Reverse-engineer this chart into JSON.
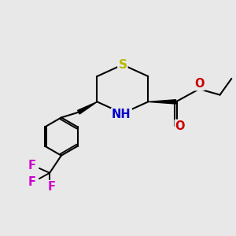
{
  "background_color": "#e8e8e8",
  "S_color": "#b8b800",
  "N_color": "#0000cc",
  "O_color": "#cc0000",
  "F_color": "#cc00cc",
  "bond_color": "#000000",
  "lw": 1.5,
  "figsize": [
    3.0,
    3.0
  ],
  "dpi": 100,
  "xlim": [
    0,
    10
  ],
  "ylim": [
    0,
    10
  ]
}
